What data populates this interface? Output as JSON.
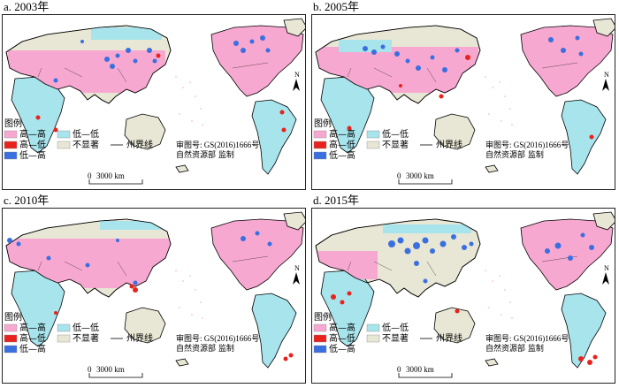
{
  "panels": [
    {
      "title": "a. 2003年",
      "year": 2003
    },
    {
      "title": "b. 2005年",
      "year": 2005
    },
    {
      "title": "c. 2010年",
      "year": 2010
    },
    {
      "title": "d. 2015年",
      "year": 2015
    }
  ],
  "legend": {
    "title": "图例",
    "items": [
      {
        "label": "高—高",
        "color": "#f7a8d0"
      },
      {
        "label": "高—低",
        "color": "#e8231d"
      },
      {
        "label": "低—高",
        "color": "#3a6fe0"
      },
      {
        "label": "低—低",
        "color": "#a7e4ec"
      },
      {
        "label": "不显著",
        "color": "#e8e6d4"
      }
    ],
    "boundary_label": "州界线"
  },
  "review": {
    "line1": "审图号: GS(2016)1666号",
    "line2": "自然资源部 监制"
  },
  "scale": {
    "zero": "0",
    "distance": "3000 km"
  },
  "north_label": "N",
  "colors": {
    "ocean": "#ffffff",
    "border": "#000000"
  }
}
